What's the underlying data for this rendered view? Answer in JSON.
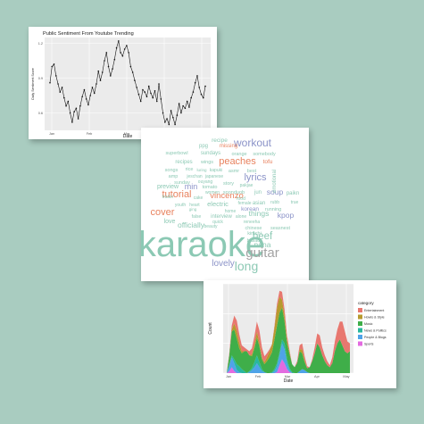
{
  "panel_line": {
    "title": "Public Sentiment From Youtube Trending",
    "xlabel": "Date",
    "ylabel": "Daily Sentiment Score",
    "x_ticks": [
      "Jan",
      "Feb",
      "Mar",
      "Apr",
      "May"
    ],
    "y_ticks": [
      "1.2",
      "0.9",
      "0.6"
    ]
  },
  "panel_area": {
    "xlabel": "Date",
    "ylabel": "Count",
    "x_ticks": [
      "Jan",
      "Feb",
      "Mar",
      "Apr",
      "May"
    ],
    "legend_title": "category",
    "legend": [
      {
        "name": "Entertainment",
        "color": "#e8776f"
      },
      {
        "name": "Howto & Style",
        "color": "#b79a2e"
      },
      {
        "name": "Music",
        "color": "#3fae49"
      },
      {
        "name": "News & Politics",
        "color": "#28b79e"
      },
      {
        "name": "People & Blogs",
        "color": "#4fa3e8"
      },
      {
        "name": "Sports",
        "color": "#e36be0"
      }
    ]
  },
  "chart_data": [
    {
      "type": "line",
      "title": "Public Sentiment From Youtube Trending",
      "xlabel": "Date",
      "ylabel": "Daily Sentiment Score",
      "x_ticks": [
        "Jan",
        "Feb",
        "Mar",
        "Apr",
        "May"
      ],
      "ylim": [
        0.45,
        1.25
      ],
      "grid": true,
      "series": [
        {
          "values": [
            0.86,
            1.0,
            1.02,
            0.92,
            0.85,
            0.78,
            0.82,
            0.73,
            0.66,
            0.7,
            0.6,
            0.52,
            0.61,
            0.64,
            0.55,
            0.66,
            0.74,
            0.8,
            0.72,
            0.67,
            0.75,
            0.82,
            0.77,
            0.85,
            0.96,
            0.88,
            0.95,
            1.05,
            1.12,
            1.0,
            0.92,
            0.98,
            1.06,
            1.16,
            1.22,
            1.12,
            1.09,
            1.15,
            1.18,
            1.12,
            1.0,
            0.95,
            0.88,
            0.82,
            0.76,
            0.7,
            0.8,
            0.78,
            0.74,
            0.83,
            0.77,
            0.73,
            0.79,
            0.7,
            0.85,
            0.72,
            0.6,
            0.52,
            0.55,
            0.5,
            0.62,
            0.56,
            0.5,
            0.58,
            0.68,
            0.6,
            0.66,
            0.64,
            0.7,
            0.65,
            0.73,
            0.78,
            0.86,
            0.92,
            0.82,
            0.76,
            0.73,
            0.83
          ]
        }
      ]
    },
    {
      "type": "area",
      "xlabel": "Date",
      "ylabel": "Count",
      "x_ticks": [
        "Jan",
        "Feb",
        "Mar",
        "Apr",
        "May"
      ],
      "ylim": [
        0,
        90
      ],
      "legend_title": "category",
      "legend_position": "right",
      "grid": true,
      "series": [
        {
          "name": "Sports",
          "color": "#e36be0",
          "values": [
            0,
            2,
            6,
            2,
            0,
            0,
            0,
            0,
            0,
            0,
            0,
            0,
            0,
            0,
            0,
            0,
            0,
            0,
            0,
            0,
            1,
            8,
            14,
            10,
            4,
            1,
            0,
            0,
            0,
            0,
            0,
            0,
            0,
            0,
            0,
            0,
            0,
            0,
            0,
            0,
            0,
            0,
            0,
            0,
            0,
            0,
            0,
            0,
            0,
            0
          ]
        },
        {
          "name": "People & Blogs",
          "color": "#4fa3e8",
          "values": [
            0,
            6,
            10,
            8,
            3,
            1,
            0,
            0,
            0,
            1,
            3,
            6,
            10,
            6,
            2,
            1,
            0,
            0,
            0,
            2,
            6,
            10,
            16,
            14,
            6,
            2,
            0,
            0,
            0,
            2,
            4,
            3,
            1,
            0,
            0,
            0,
            0,
            0,
            0,
            0,
            0,
            0,
            0,
            0,
            0,
            0,
            0,
            0,
            0,
            0
          ]
        },
        {
          "name": "News & Politics",
          "color": "#28b79e",
          "values": [
            0,
            0,
            2,
            4,
            6,
            6,
            4,
            2,
            0,
            1,
            2,
            5,
            8,
            5,
            2,
            0,
            0,
            0,
            1,
            2,
            3,
            3,
            4,
            6,
            4,
            2,
            1,
            0,
            0,
            0,
            0,
            0,
            0,
            0,
            0,
            0,
            0,
            0,
            0,
            0,
            0,
            0,
            0,
            0,
            0,
            0,
            0,
            0,
            0,
            0
          ]
        },
        {
          "name": "Music",
          "color": "#3fae49",
          "values": [
            0,
            10,
            24,
            30,
            26,
            18,
            16,
            20,
            22,
            16,
            12,
            14,
            18,
            16,
            10,
            8,
            12,
            16,
            20,
            30,
            38,
            40,
            32,
            22,
            16,
            14,
            8,
            6,
            10,
            20,
            16,
            8,
            4,
            6,
            12,
            20,
            30,
            26,
            18,
            12,
            8,
            6,
            10,
            22,
            30,
            34,
            28,
            22,
            20,
            22
          ]
        },
        {
          "name": "Howto & Style",
          "color": "#b79a2e",
          "values": [
            0,
            0,
            2,
            6,
            8,
            6,
            2,
            0,
            0,
            0,
            2,
            4,
            6,
            4,
            2,
            2,
            4,
            6,
            8,
            12,
            18,
            16,
            8,
            6,
            4,
            2,
            0,
            0,
            0,
            2,
            4,
            2,
            0,
            0,
            0,
            0,
            0,
            0,
            0,
            0,
            0,
            0,
            0,
            0,
            0,
            0,
            0,
            0,
            0,
            0
          ]
        },
        {
          "name": "Entertainment",
          "color": "#e8776f",
          "values": [
            0,
            2,
            4,
            8,
            10,
            8,
            6,
            4,
            2,
            4,
            6,
            8,
            10,
            12,
            10,
            6,
            4,
            2,
            0,
            2,
            4,
            6,
            8,
            6,
            4,
            2,
            0,
            0,
            2,
            4,
            6,
            4,
            2,
            0,
            2,
            6,
            10,
            12,
            8,
            6,
            4,
            2,
            6,
            10,
            14,
            18,
            24,
            20,
            12,
            8
          ]
        }
      ]
    }
  ],
  "wordcloud": {
    "words": [
      {
        "text": "recipe",
        "color": "#8cc9b4"
      },
      {
        "text": "workout",
        "color": "#8b93c8"
      },
      {
        "text": "ppg",
        "color": "#8cc9b4"
      },
      {
        "text": "missing",
        "color": "#e8825e"
      },
      {
        "text": "superbowl",
        "color": "#8cc9b4"
      },
      {
        "text": "sundays",
        "color": "#8cc9b4"
      },
      {
        "text": "orange",
        "color": "#8cc9b4"
      },
      {
        "text": "somebody",
        "color": "#8cc9b4"
      },
      {
        "text": "recipes",
        "color": "#8cc9b4"
      },
      {
        "text": "wings",
        "color": "#8cc9b4"
      },
      {
        "text": "peaches",
        "color": "#e8825e"
      },
      {
        "text": "tofu",
        "color": "#e8825e"
      },
      {
        "text": "songs",
        "color": "#8cc9b4"
      },
      {
        "text": "rice",
        "color": "#8cc9b4"
      },
      {
        "text": "luring",
        "color": "#8cc9b4"
      },
      {
        "text": "kapuki",
        "color": "#8cc9b4"
      },
      {
        "text": "asmr",
        "color": "#8cc9b4"
      },
      {
        "text": "best",
        "color": "#8cc9b4"
      },
      {
        "text": "amp",
        "color": "#8cc9b4"
      },
      {
        "text": "jeschan",
        "color": "#8cc9b4"
      },
      {
        "text": "japanese",
        "color": "#8cc9b4"
      },
      {
        "text": "sunday",
        "color": "#8cc9b4"
      },
      {
        "text": "ouyang",
        "color": "#8cc9b4"
      },
      {
        "text": "lyrics",
        "color": "#8b93c8"
      },
      {
        "text": "preview",
        "color": "#8cc9b4"
      },
      {
        "text": "min",
        "color": "#8b93c8"
      },
      {
        "text": "tomato",
        "color": "#8cc9b4"
      },
      {
        "text": "story",
        "color": "#8cc9b4"
      },
      {
        "text": "pakjae",
        "color": "#8cc9b4"
      },
      {
        "text": "tutorial",
        "color": "#e8825e"
      },
      {
        "text": "women",
        "color": "#8cc9b4"
      },
      {
        "text": "soonduob",
        "color": "#8cc9b4"
      },
      {
        "text": "jun",
        "color": "#8cc9b4"
      },
      {
        "text": "soup",
        "color": "#8b93c8"
      },
      {
        "text": "paikn",
        "color": "#8cc9b4"
      },
      {
        "text": "vincenzo",
        "color": "#e8825e"
      },
      {
        "text": "trailer",
        "color": "#8cc9b4"
      },
      {
        "text": "cake",
        "color": "#8cc9b4"
      },
      {
        "text": "food",
        "color": "#8cc9b4"
      },
      {
        "text": "emotional",
        "color": "#8cc9b4"
      },
      {
        "text": "youth",
        "color": "#8cc9b4"
      },
      {
        "text": "heart",
        "color": "#8cc9b4"
      },
      {
        "text": "electric",
        "color": "#8cc9b4"
      },
      {
        "text": "female",
        "color": "#8cc9b4"
      },
      {
        "text": "asian",
        "color": "#8cc9b4"
      },
      {
        "text": "rubb",
        "color": "#8cc9b4"
      },
      {
        "text": "true",
        "color": "#8cc9b4"
      },
      {
        "text": "cover",
        "color": "#e8825e"
      },
      {
        "text": "ging",
        "color": "#8cc9b4"
      },
      {
        "text": "korean",
        "color": "#8b93c8"
      },
      {
        "text": "running",
        "color": "#8cc9b4"
      },
      {
        "text": "home",
        "color": "#8cc9b4"
      },
      {
        "text": "things",
        "color": "#8cc9b4"
      },
      {
        "text": "kpop",
        "color": "#8b93c8"
      },
      {
        "text": "love",
        "color": "#8cc9b4"
      },
      {
        "text": "false",
        "color": "#8cc9b4"
      },
      {
        "text": "interview",
        "color": "#8cc9b4"
      },
      {
        "text": "alone",
        "color": "#8cc9b4"
      },
      {
        "text": "quick",
        "color": "#8cc9b4"
      },
      {
        "text": "beauty",
        "color": "#8cc9b4"
      },
      {
        "text": "reneeha",
        "color": "#8cc9b4"
      },
      {
        "text": "officially",
        "color": "#8cc9b4"
      },
      {
        "text": "chinese",
        "color": "#8cc9b4"
      },
      {
        "text": "seasnest",
        "color": "#8cc9b4"
      },
      {
        "text": "kimchi",
        "color": "#8cc9b4"
      },
      {
        "text": "beef",
        "color": "#8cc9b4"
      },
      {
        "text": "ballad",
        "color": "#8cc9b4"
      },
      {
        "text": "nana",
        "color": "#8cc9b4"
      },
      {
        "text": "karaoke",
        "color": "#8cc9b4"
      },
      {
        "text": "guitar",
        "color": "#a3a3a3"
      },
      {
        "text": "lovely",
        "color": "#8b93c8"
      },
      {
        "text": "long",
        "color": "#8cc9b4"
      },
      {
        "text": "isnt",
        "color": "#8b93c8"
      }
    ]
  }
}
